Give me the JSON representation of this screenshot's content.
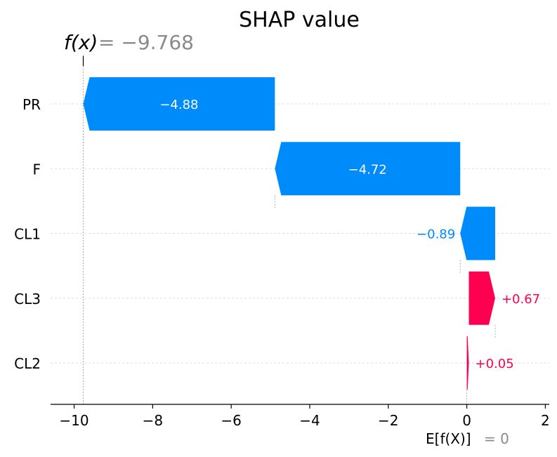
{
  "chart_data": {
    "type": "waterfall",
    "title": "SHAP value",
    "fx": {
      "label": "f(x)",
      "value_text": "= −9.768",
      "value": -9.768
    },
    "expected": {
      "label": "E[f(X)]",
      "value_text": "= 0",
      "value": 0
    },
    "xlim": [
      -10.6,
      2.1
    ],
    "xticks": [
      {
        "value": -10,
        "label": "−10"
      },
      {
        "value": -8,
        "label": "−8"
      },
      {
        "value": -6,
        "label": "−6"
      },
      {
        "value": -4,
        "label": "−4"
      },
      {
        "value": -2,
        "label": "−2"
      },
      {
        "value": 0,
        "label": "0"
      },
      {
        "value": 2,
        "label": "2"
      }
    ],
    "colors": {
      "negative": "#008bfb",
      "positive": "#ff0051",
      "grid": "#dddddd",
      "connector": "#999999",
      "axis": "#000000"
    },
    "features": [
      {
        "name": "PR",
        "start": -4.888,
        "end": -9.768,
        "value": -4.88,
        "label": "−4.88"
      },
      {
        "name": "F",
        "start": -0.168,
        "end": -4.888,
        "value": -4.72,
        "label": "−4.72"
      },
      {
        "name": "CL1",
        "start": 0.722,
        "end": -0.168,
        "value": -0.89,
        "label": "−0.89"
      },
      {
        "name": "CL3",
        "start": 0.052,
        "end": 0.722,
        "value": 0.67,
        "label": "+0.67"
      },
      {
        "name": "CL2",
        "start": 0.0,
        "end": 0.052,
        "value": 0.05,
        "label": "+0.05"
      }
    ]
  }
}
